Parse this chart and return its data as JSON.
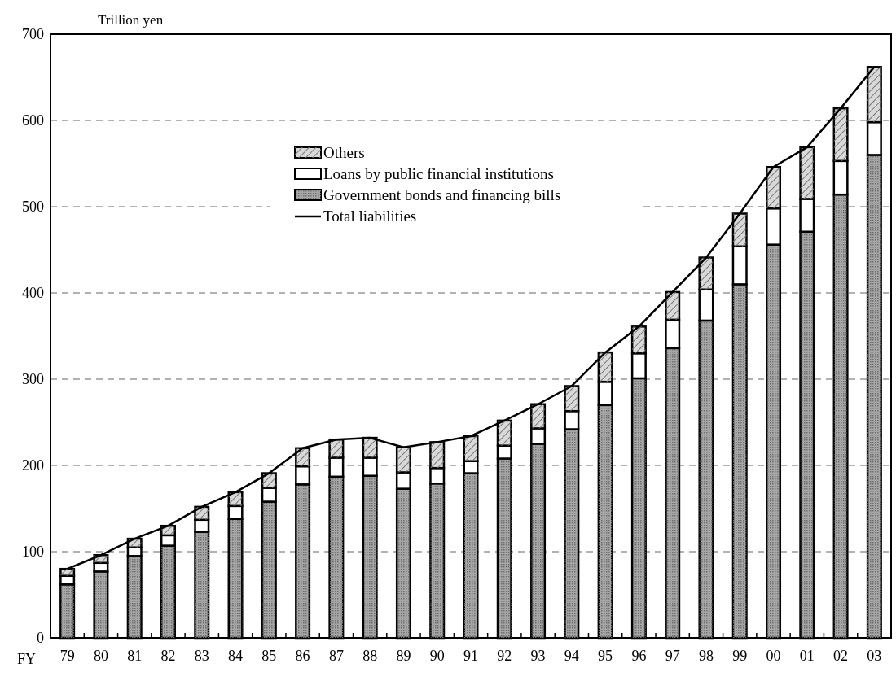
{
  "chart_data": {
    "type": "bar",
    "stacked": true,
    "ylabel": "Trillion yen",
    "xlabel": "FY",
    "categories": [
      "79",
      "80",
      "81",
      "82",
      "83",
      "84",
      "85",
      "86",
      "87",
      "88",
      "89",
      "90",
      "91",
      "92",
      "93",
      "94",
      "95",
      "96",
      "97",
      "98",
      "99",
      "00",
      "01",
      "02",
      "03"
    ],
    "series": [
      {
        "name": "Government bonds and financing bills",
        "color": "#a6a6a6",
        "values": [
          62,
          77,
          95,
          107,
          123,
          138,
          158,
          178,
          187,
          188,
          173,
          179,
          191,
          208,
          225,
          242,
          270,
          301,
          336,
          368,
          410,
          456,
          471,
          514,
          560
        ]
      },
      {
        "name": "Loans by public financial institutions",
        "color": "#ffffff",
        "values": [
          10,
          10,
          10,
          12,
          14,
          15,
          16,
          21,
          22,
          21,
          19,
          18,
          14,
          15,
          18,
          21,
          27,
          29,
          33,
          36,
          44,
          42,
          38,
          39,
          38
        ]
      },
      {
        "name": "Others",
        "color": "#d9d9d9",
        "values": [
          8,
          9,
          10,
          11,
          15,
          16,
          17,
          21,
          21,
          23,
          29,
          30,
          29,
          29,
          28,
          29,
          34,
          31,
          32,
          37,
          38,
          48,
          60,
          61,
          64
        ]
      },
      {
        "name": "Total liabilities",
        "type": "line",
        "color": "#000000",
        "values": [
          80,
          96,
          115,
          130,
          152,
          169,
          191,
          220,
          230,
          232,
          221,
          227,
          234,
          252,
          271,
          292,
          331,
          361,
          401,
          441,
          492,
          546,
          569,
          614,
          662
        ]
      }
    ],
    "ylim": [
      0,
      700
    ],
    "yticks": [
      0,
      100,
      200,
      300,
      400,
      500,
      600,
      700
    ],
    "grid": "y",
    "legend": "top left"
  }
}
